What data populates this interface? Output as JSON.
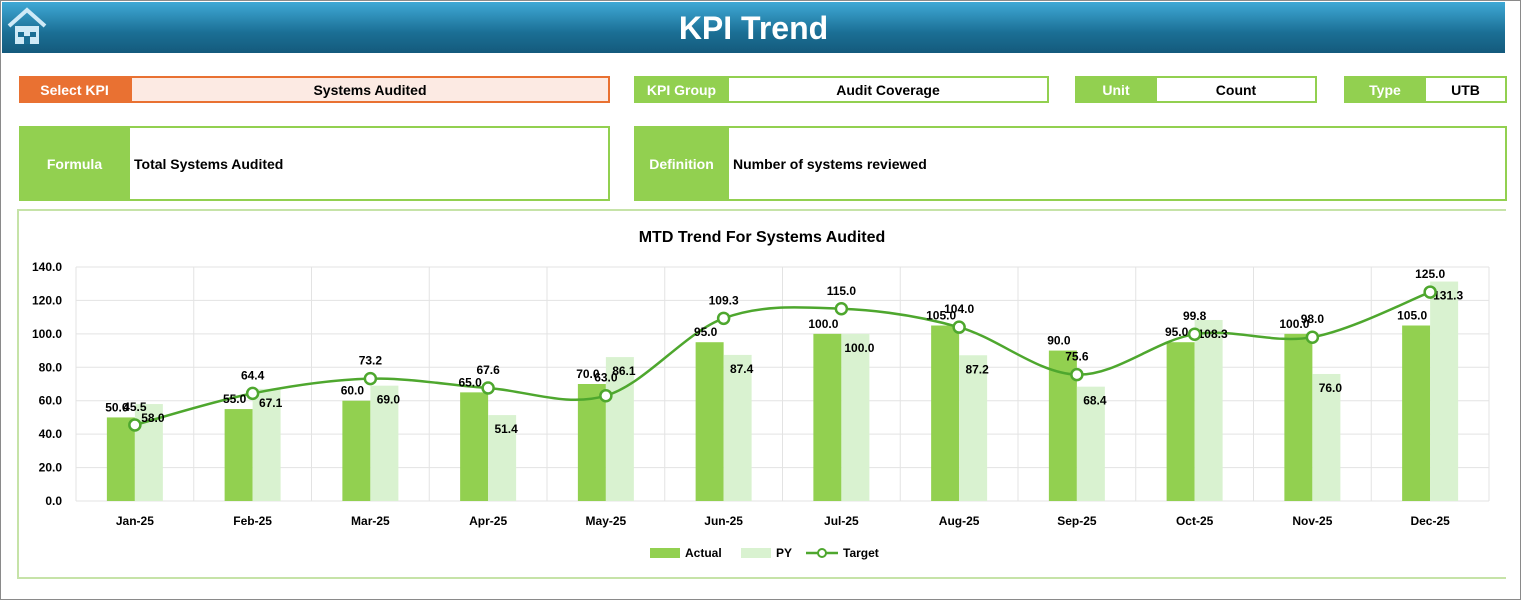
{
  "header": {
    "title": "KPI Trend",
    "home_icon": "home-icon"
  },
  "fields": {
    "select_kpi": {
      "label": "Select KPI",
      "value": "Systems Audited"
    },
    "kpi_group": {
      "label": "KPI Group",
      "value": "Audit Coverage"
    },
    "unit": {
      "label": "Unit",
      "value": "Count"
    },
    "type": {
      "label": "Type",
      "value": "UTB"
    },
    "formula": {
      "label": "Formula",
      "value": "Total Systems Audited"
    },
    "definition": {
      "label": "Definition",
      "value": "Number of systems reviewed"
    }
  },
  "colors": {
    "label_orange": "#E97132",
    "label_green": "#92D050",
    "actual": "#92D050",
    "py": "#D9F2D0",
    "target": "#4EA72E"
  },
  "chart_data": {
    "type": "bar",
    "title": "MTD Trend For Systems Audited",
    "categories": [
      "Jan-25",
      "Feb-25",
      "Mar-25",
      "Apr-25",
      "May-25",
      "Jun-25",
      "Jul-25",
      "Aug-25",
      "Sep-25",
      "Oct-25",
      "Nov-25",
      "Dec-25"
    ],
    "series": [
      {
        "name": "Actual",
        "type": "bar",
        "values": [
          50.0,
          55.0,
          60.0,
          65.0,
          70.0,
          95.0,
          100.0,
          105.0,
          90.0,
          95.0,
          100.0,
          105.0
        ]
      },
      {
        "name": "PY",
        "type": "bar",
        "values": [
          58.0,
          67.1,
          69.0,
          51.4,
          86.1,
          87.4,
          100.0,
          87.2,
          68.4,
          108.3,
          76.0,
          131.3
        ]
      },
      {
        "name": "Target",
        "type": "line",
        "values": [
          45.5,
          64.4,
          73.2,
          67.6,
          63.0,
          109.3,
          115.0,
          104.0,
          75.6,
          99.8,
          98.0,
          125.0
        ]
      }
    ],
    "yticks": [
      "0.0",
      "20.0",
      "40.0",
      "60.0",
      "80.0",
      "100.0",
      "120.0",
      "140.0"
    ],
    "ylim": [
      0,
      140
    ],
    "grid": true,
    "legend": "bottom"
  }
}
